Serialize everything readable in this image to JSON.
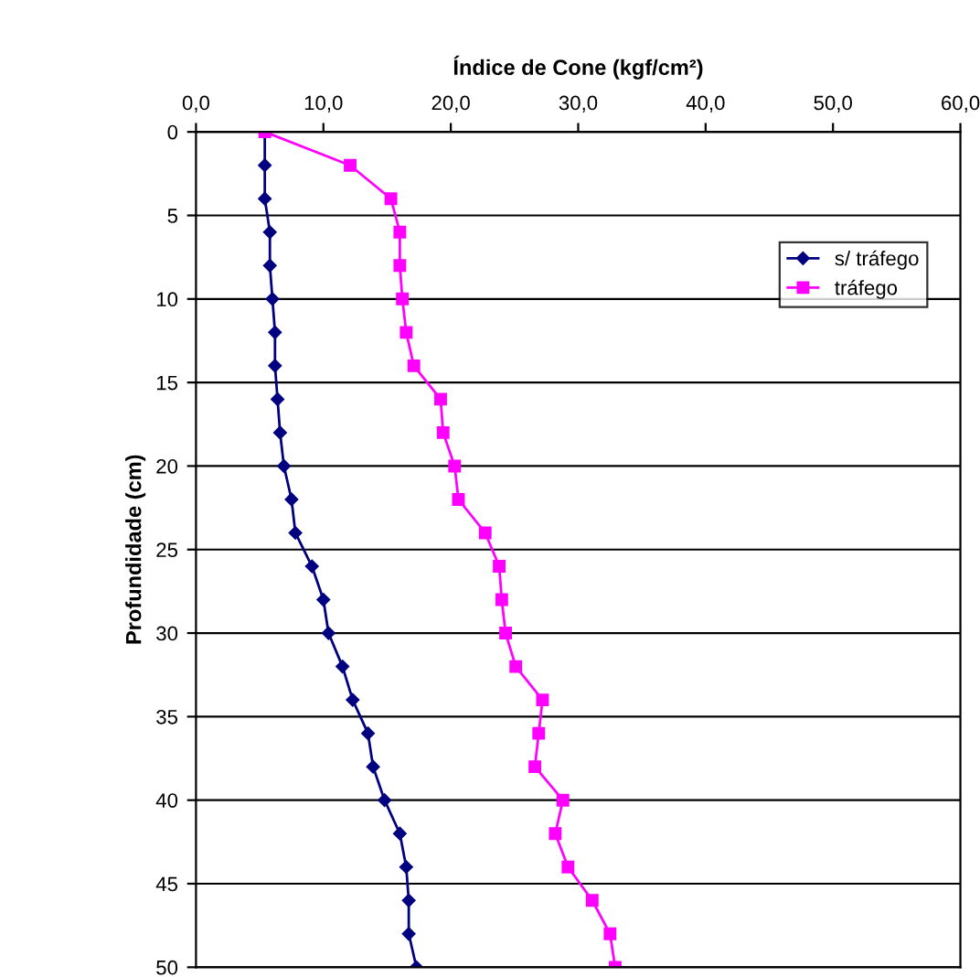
{
  "chart_data": {
    "type": "line",
    "xlabel": "Índice de Cone (kgf/cm²)",
    "ylabel": "Profundidade (cm)",
    "xlim": [
      0,
      60
    ],
    "xticks": [
      {
        "value": 0,
        "label": "0,0"
      },
      {
        "value": 10,
        "label": "10,0"
      },
      {
        "value": 20,
        "label": "20,0"
      },
      {
        "value": 30,
        "label": "30,0"
      },
      {
        "value": 40,
        "label": "40,0"
      },
      {
        "value": 50,
        "label": "50,0"
      },
      {
        "value": 60,
        "label": "60,0"
      }
    ],
    "ylim": [
      50,
      0
    ],
    "yticks": [
      0,
      5,
      10,
      15,
      20,
      25,
      30,
      35,
      40,
      45,
      50
    ],
    "grid": "y",
    "legend": "top right",
    "line_style": "solid",
    "series": [
      {
        "name": "s/ tráfego",
        "color": "#000080",
        "marker": "diamond",
        "x": [
          5.4,
          5.4,
          5.4,
          5.8,
          5.8,
          6.0,
          6.2,
          6.2,
          6.4,
          6.6,
          6.9,
          7.5,
          7.8,
          9.1,
          10.0,
          10.4,
          11.5,
          12.3,
          13.5,
          13.9,
          14.8,
          16.0,
          16.5,
          16.7,
          16.7,
          17.3
        ],
        "values": [
          0,
          2,
          4,
          6,
          8,
          10,
          12,
          14,
          16,
          18,
          20,
          22,
          24,
          26,
          28,
          30,
          32,
          34,
          36,
          38,
          40,
          42,
          44,
          46,
          48,
          50
        ]
      },
      {
        "name": "tráfego",
        "color": "#ff00ff",
        "marker": "square",
        "x": [
          5.4,
          12.1,
          15.3,
          16.0,
          16.0,
          16.2,
          16.5,
          17.1,
          19.2,
          19.4,
          20.3,
          20.6,
          22.7,
          23.8,
          24.0,
          24.3,
          25.1,
          27.2,
          26.9,
          26.6,
          28.8,
          28.2,
          29.2,
          31.1,
          32.5,
          32.9
        ],
        "values": [
          0,
          2,
          4,
          6,
          8,
          10,
          12,
          14,
          16,
          18,
          20,
          22,
          24,
          26,
          28,
          30,
          32,
          34,
          36,
          38,
          40,
          42,
          44,
          46,
          48,
          50
        ]
      }
    ]
  }
}
